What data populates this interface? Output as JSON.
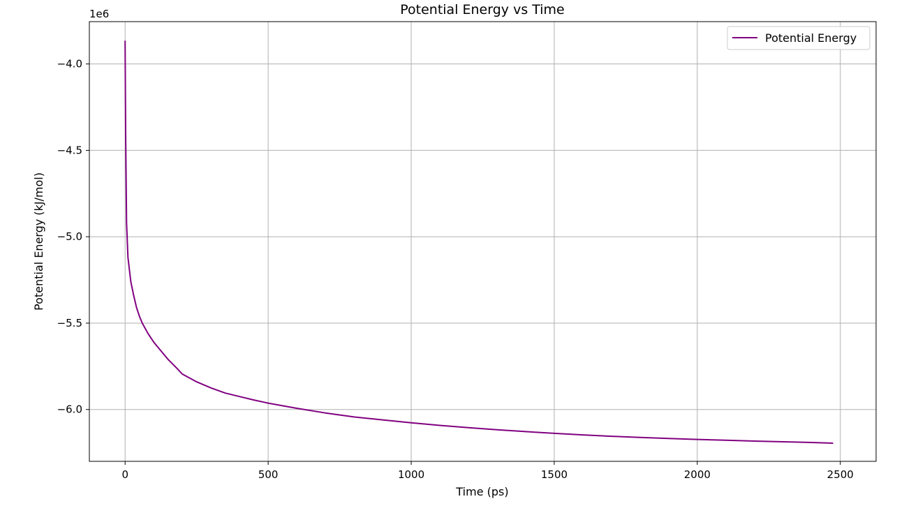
{
  "chart_data": {
    "type": "line",
    "title": "Potential Energy vs Time",
    "xlabel": "Time (ps)",
    "ylabel": "Potential Energy (kJ/mol)",
    "y_offset_label": "1e6",
    "y_scale_factor": 1000000,
    "xlim": [
      -125,
      2625
    ],
    "ylim": [
      -6.3,
      -3.755
    ],
    "xticks": [
      0,
      500,
      1000,
      1500,
      2000,
      2500
    ],
    "xtick_labels": [
      "0",
      "500",
      "1000",
      "1500",
      "2000",
      "2500"
    ],
    "yticks": [
      -4.0,
      -4.5,
      -5.0,
      -5.5,
      -6.0
    ],
    "ytick_labels": [
      "−4.0",
      "−4.5",
      "−5.0",
      "−5.5",
      "−6.0"
    ],
    "grid": true,
    "legend_position": "top-right",
    "series": [
      {
        "name": "Potential Energy",
        "color": "#800080",
        "x": [
          0,
          2,
          5,
          10,
          20,
          30,
          40,
          50,
          60,
          80,
          100,
          120,
          150,
          180,
          200,
          250,
          300,
          350,
          400,
          450,
          500,
          600,
          700,
          800,
          900,
          1000,
          1100,
          1200,
          1300,
          1400,
          1500,
          1600,
          1700,
          1800,
          1900,
          2000,
          2100,
          2200,
          2300,
          2400,
          2475
        ],
        "y": [
          -3.865,
          -4.4,
          -4.92,
          -5.12,
          -5.26,
          -5.34,
          -5.41,
          -5.46,
          -5.5,
          -5.56,
          -5.61,
          -5.65,
          -5.71,
          -5.76,
          -5.795,
          -5.84,
          -5.875,
          -5.905,
          -5.925,
          -5.945,
          -5.963,
          -5.993,
          -6.02,
          -6.043,
          -6.06,
          -6.077,
          -6.092,
          -6.105,
          -6.117,
          -6.128,
          -6.138,
          -6.147,
          -6.155,
          -6.162,
          -6.168,
          -6.173,
          -6.178,
          -6.183,
          -6.187,
          -6.191,
          -6.195
        ]
      }
    ]
  }
}
